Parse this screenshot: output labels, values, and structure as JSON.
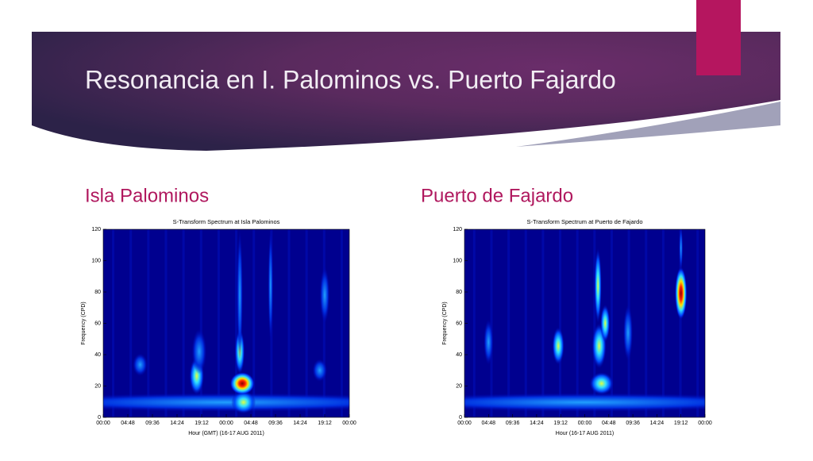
{
  "slide": {
    "title": "Resonancia en I. Palominos vs. Puerto Fajardo"
  },
  "panels": [
    {
      "heading": "Isla Palominos",
      "chart": {
        "type": "heatmap",
        "title": "S-Transform Spectrum at Isla Palominos",
        "xlabel": "Hour (GMT) (16-17 AUG 2011)",
        "ylabel": "Frequency (CPD)",
        "ylim": [
          0,
          120
        ],
        "yticks": [
          0,
          20,
          40,
          60,
          80,
          100,
          120
        ],
        "xticks": [
          "00:00",
          "04:48",
          "09:36",
          "14:24",
          "19:12",
          "00:00",
          "04:48",
          "09:36",
          "14:24",
          "19:12",
          "00:00"
        ]
      }
    },
    {
      "heading": "Puerto de Fajardo",
      "chart": {
        "type": "heatmap",
        "title": "S-Transform Spectrum at Puerto de Fajardo",
        "xlabel": "Hour (16-17 AUG 2011)",
        "ylabel": "Frequency (CPD)",
        "ylim": [
          0,
          120
        ],
        "yticks": [
          0,
          20,
          40,
          60,
          80,
          100,
          120
        ],
        "xticks": [
          "00:00",
          "04:48",
          "09:36",
          "14:24",
          "19:12",
          "00:00",
          "04:48",
          "09:36",
          "14:24",
          "19:12",
          "00:00"
        ]
      }
    }
  ]
}
